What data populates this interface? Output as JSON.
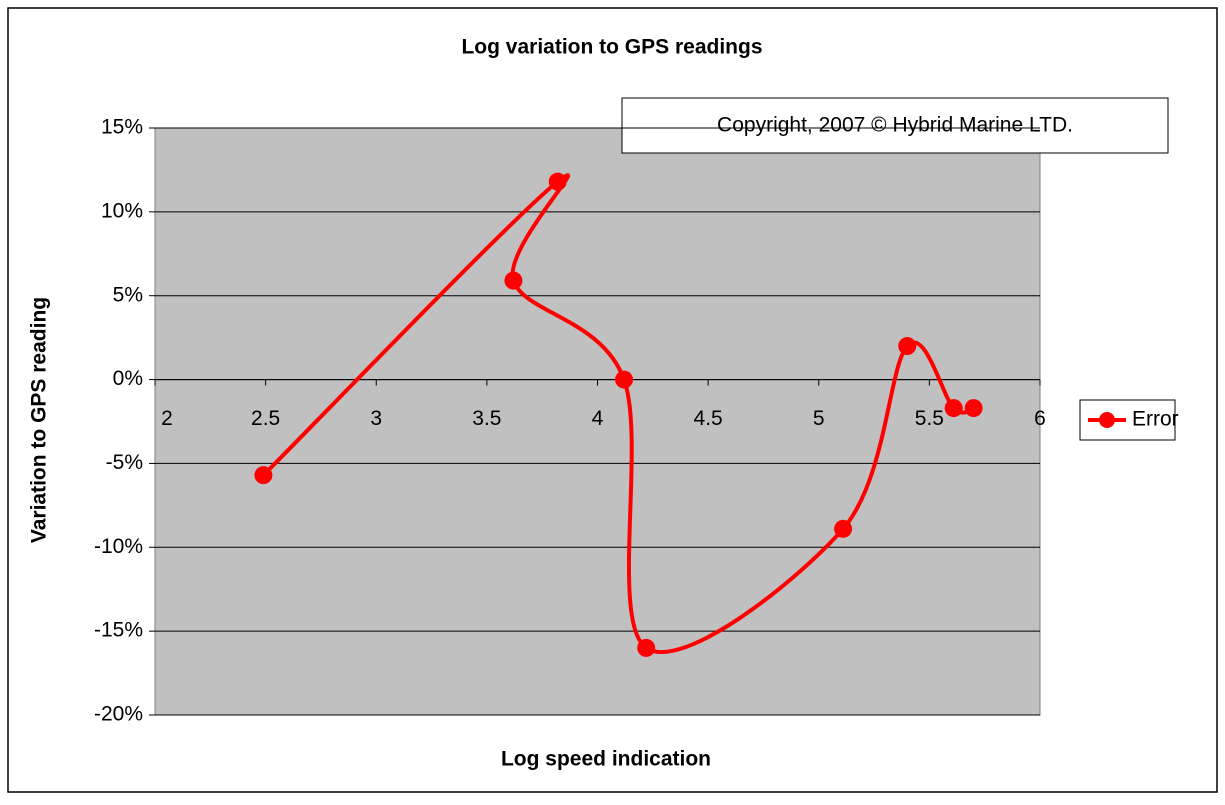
{
  "chart_data": {
    "type": "scatter",
    "title": "Log variation to GPS readings",
    "annotation": "Copyright, 2007 © Hybrid Marine LTD.",
    "x_label": "Log speed indication",
    "y_label": "Variation to GPS reading",
    "xlim": [
      2,
      6
    ],
    "xticks": [
      2,
      2.5,
      3,
      3.5,
      4,
      4.5,
      5,
      5.5,
      6
    ],
    "ylim": [
      -20,
      15
    ],
    "yticks": [
      {
        "value": -20,
        "label": "-20%"
      },
      {
        "value": -15,
        "label": "-15%"
      },
      {
        "value": -10,
        "label": "-10%"
      },
      {
        "value": -5,
        "label": "-5%"
      },
      {
        "value": 0,
        "label": "0%"
      },
      {
        "value": 5,
        "label": "5%"
      },
      {
        "value": 10,
        "label": "10%"
      },
      {
        "value": 15,
        "label": "15%"
      }
    ],
    "grid": true,
    "smooth": true,
    "legend": "right",
    "series": [
      {
        "name": "Error",
        "color": "#ff0000",
        "x": [
          2.49,
          3.82,
          3.62,
          4.12,
          4.22,
          5.11,
          5.4,
          5.61,
          5.7
        ],
        "values": [
          -5.7,
          11.8,
          5.9,
          0,
          -16,
          -8.9,
          2,
          -1.7,
          -1.7
        ]
      }
    ]
  }
}
